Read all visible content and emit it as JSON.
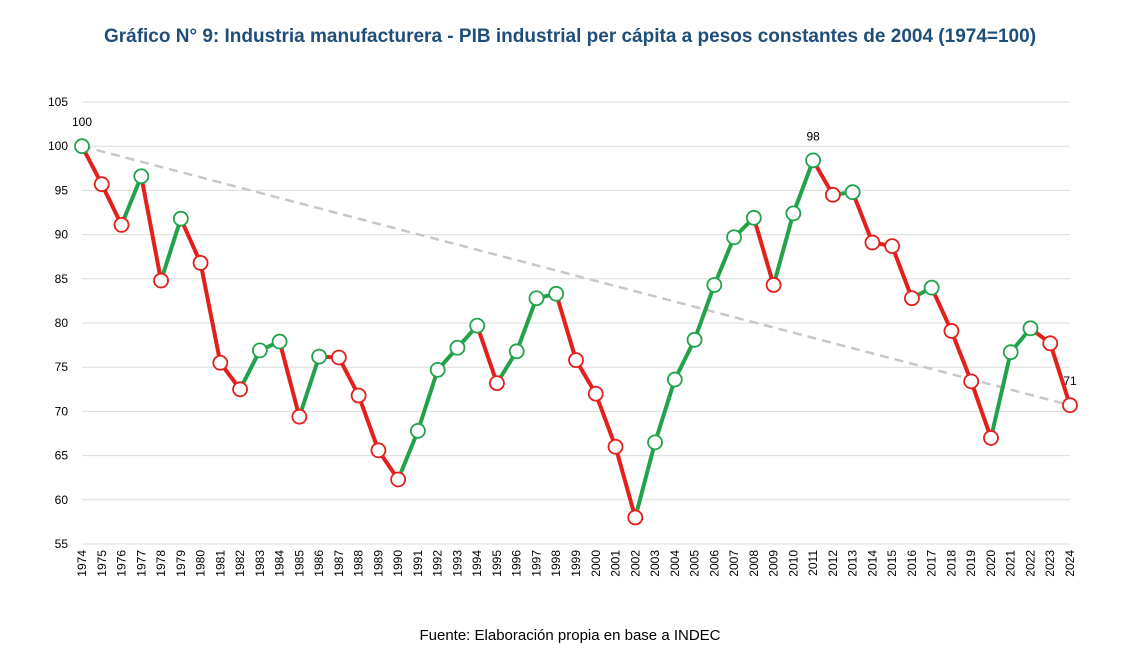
{
  "chart_data": {
    "type": "line",
    "title": "Gráfico N° 9: Industria manufacturera - PIB industrial per cápita a pesos constantes de 2004 (1974=100)",
    "source": "Fuente: Elaboración propia en base a INDEC",
    "xlabel": "",
    "ylabel": "",
    "ylim": [
      55,
      105
    ],
    "yticks": [
      55,
      60,
      65,
      70,
      75,
      80,
      85,
      90,
      95,
      100,
      105
    ],
    "x": [
      "1974",
      "1975",
      "1976",
      "1977",
      "1978",
      "1979",
      "1980",
      "1981",
      "1982",
      "1983",
      "1984",
      "1985",
      "1986",
      "1987",
      "1988",
      "1989",
      "1990",
      "1991",
      "1992",
      "1993",
      "1994",
      "1995",
      "1996",
      "1997",
      "1998",
      "1999",
      "2000",
      "2001",
      "2002",
      "2003",
      "2004",
      "2005",
      "2006",
      "2007",
      "2008",
      "2009",
      "2010",
      "2011",
      "2012",
      "2013",
      "2014",
      "2015",
      "2016",
      "2017",
      "2018",
      "2019",
      "2020",
      "2021",
      "2022",
      "2023",
      "2024"
    ],
    "series": [
      {
        "values": [
          100,
          95.7,
          91.1,
          96.6,
          84.8,
          91.8,
          86.8,
          75.5,
          72.5,
          76.9,
          77.9,
          69.4,
          76.2,
          76.1,
          71.8,
          65.6,
          62.3,
          67.8,
          74.7,
          77.2,
          79.7,
          73.2,
          76.8,
          82.8,
          83.3,
          75.8,
          72.0,
          66.0,
          58.0,
          66.5,
          73.6,
          78.1,
          84.3,
          89.7,
          91.9,
          84.3,
          92.4,
          98.4,
          94.5,
          94.8,
          89.1,
          88.7,
          82.8,
          84.0,
          79.1,
          73.4,
          67.0,
          76.7,
          79.4,
          77.7,
          70.7
        ]
      }
    ],
    "trend": {
      "from": 100,
      "to": 70.7
    },
    "data_labels": [
      {
        "x": "1974",
        "text": "100"
      },
      {
        "x": "2011",
        "text": "98"
      },
      {
        "x": "2024",
        "text": "71"
      }
    ],
    "colors": {
      "increase": "#22a34a",
      "decrease": "#e3201b",
      "marker_stroke": "#e3201b",
      "marker_fill": "#ffffff",
      "trend": "#c8c8c8",
      "gridline": "#dcdcdc"
    },
    "grid": true,
    "legend": "none"
  }
}
